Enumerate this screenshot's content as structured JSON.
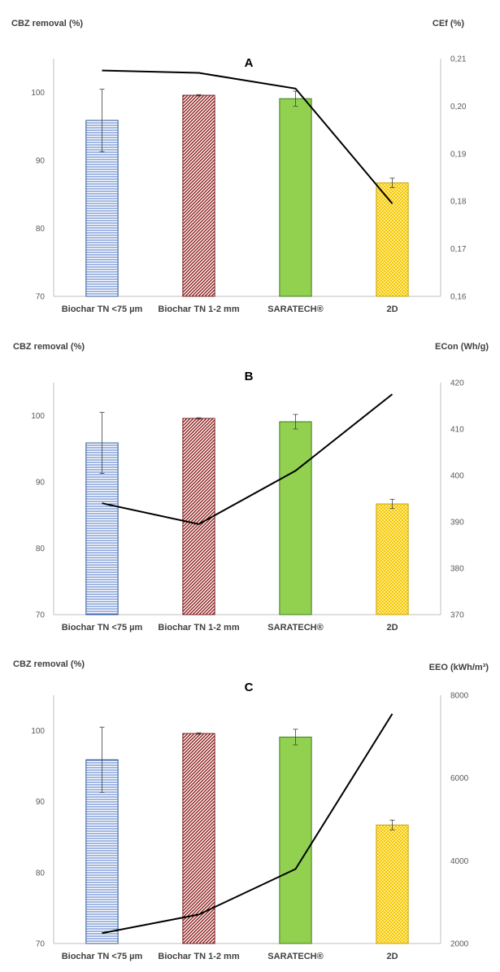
{
  "chart_data": [
    {
      "type": "bar",
      "title": "A",
      "categories": [
        "Biochar TN <75 µm",
        "Biochar TN 1-2 mm",
        "SARATECH®",
        "2D"
      ],
      "ylabel": "CBZ removal (%)",
      "ylim": [
        70,
        105
      ],
      "yticks": [
        70,
        80,
        90,
        100
      ],
      "series": [
        {
          "name": "CBZ removal (%)",
          "values": [
            95.9,
            99.6,
            99.1,
            86.7
          ],
          "errors": [
            4.6,
            0.1,
            1.1,
            0.7
          ]
        }
      ],
      "secondary": {
        "type": "line",
        "ylabel": "CEf (%)",
        "ylim": [
          0.16,
          0.21
        ],
        "yticks": [
          "0,16",
          "0,17",
          "0,18",
          "0,19",
          "0,20",
          "0,21"
        ],
        "values": [
          0.2075,
          0.207,
          0.2037,
          0.1795
        ]
      }
    },
    {
      "type": "bar",
      "title": "B",
      "categories": [
        "Biochar TN <75 µm",
        "Biochar TN 1-2 mm",
        "SARATECH®",
        "2D"
      ],
      "ylabel": "CBZ removal (%)",
      "ylim": [
        70,
        105
      ],
      "yticks": [
        70,
        80,
        90,
        100
      ],
      "series": [
        {
          "name": "CBZ removal (%)",
          "values": [
            95.9,
            99.6,
            99.1,
            86.7
          ],
          "errors": [
            4.6,
            0.1,
            1.1,
            0.7
          ]
        }
      ],
      "secondary": {
        "type": "line",
        "ylabel": "ECon (Wh/g)",
        "ylim": [
          370,
          420
        ],
        "yticks": [
          "370",
          "380",
          "390",
          "400",
          "410",
          "420"
        ],
        "values": [
          394,
          389.5,
          401,
          417.5
        ]
      }
    },
    {
      "type": "bar",
      "title": "C",
      "categories": [
        "Biochar TN <75 µm",
        "Biochar TN 1-2 mm",
        "SARATECH®",
        "2D"
      ],
      "ylabel": "CBZ removal (%)",
      "ylim": [
        70,
        105
      ],
      "yticks": [
        70,
        80,
        90,
        100
      ],
      "series": [
        {
          "name": "CBZ removal (%)",
          "values": [
            95.9,
            99.6,
            99.1,
            86.7
          ],
          "errors": [
            4.6,
            0.1,
            1.1,
            0.7
          ]
        }
      ],
      "secondary": {
        "type": "line",
        "ylabel": "EEO (kWh/m³)",
        "ylim": [
          2000,
          8000
        ],
        "yticks": [
          "2000",
          "4000",
          "6000",
          "8000"
        ],
        "values": [
          2250,
          2700,
          3800,
          7550
        ]
      }
    }
  ],
  "colors": {
    "bar_fills": [
      "#dbe6f4",
      "#7a1f1f",
      "#92d050",
      "#ffe27a"
    ],
    "bar_strokes": [
      "#2f5597",
      "#7a1f1f",
      "#3d7d1e",
      "#c9a400"
    ],
    "line": "#000000",
    "axis": "#bfbfbf"
  }
}
